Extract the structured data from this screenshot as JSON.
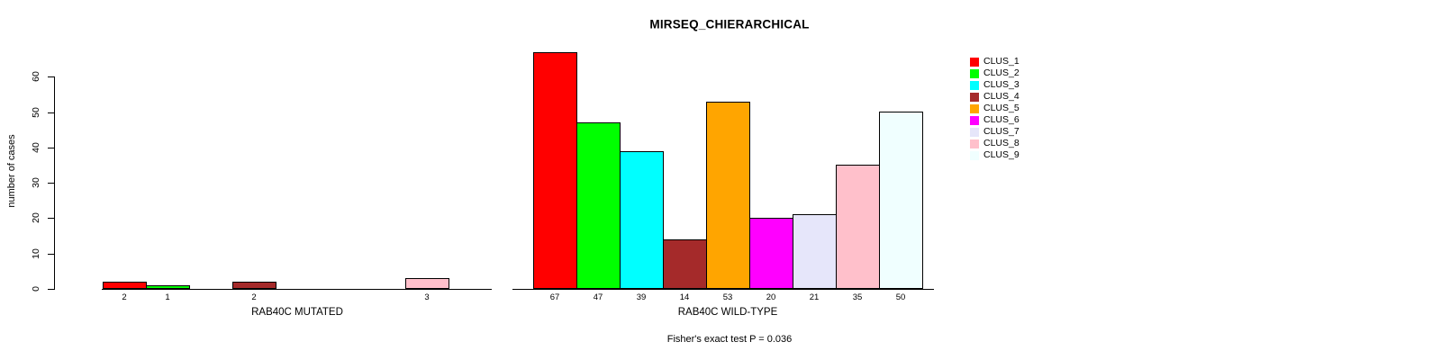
{
  "figure": {
    "title": "MIRSEQ_CHIERARCHICAL",
    "footnote": "Fisher's exact test P = 0.036"
  },
  "chart_data": {
    "type": "bar",
    "title": "MIRSEQ_CHIERARCHICAL",
    "ylabel": "number of cases",
    "xlabel": "",
    "ylim": [
      0,
      60
    ],
    "yticks": [
      0,
      10,
      20,
      30,
      40,
      50,
      60
    ],
    "grid": false,
    "legend_position": "right",
    "categories": [
      "CLUS_1",
      "CLUS_2",
      "CLUS_3",
      "CLUS_4",
      "CLUS_5",
      "CLUS_6",
      "CLUS_7",
      "CLUS_8",
      "CLUS_9"
    ],
    "colors": [
      "#FF0000",
      "#00FF00",
      "#00FFFF",
      "#A52A2A",
      "#FFA500",
      "#FF00FF",
      "#E6E6FA",
      "#FFC0CB",
      "#F0FFFF"
    ],
    "series": [
      {
        "name": "RAB40C MUTATED",
        "values": [
          2,
          1,
          0,
          2,
          0,
          0,
          0,
          3,
          0
        ]
      },
      {
        "name": "RAB40C WILD-TYPE",
        "values": [
          67,
          47,
          39,
          14,
          53,
          20,
          21,
          35,
          50
        ]
      }
    ],
    "bar_value_labels": "shown under each non-zero bar",
    "annotation": "Fisher's exact test P = 0.036"
  }
}
